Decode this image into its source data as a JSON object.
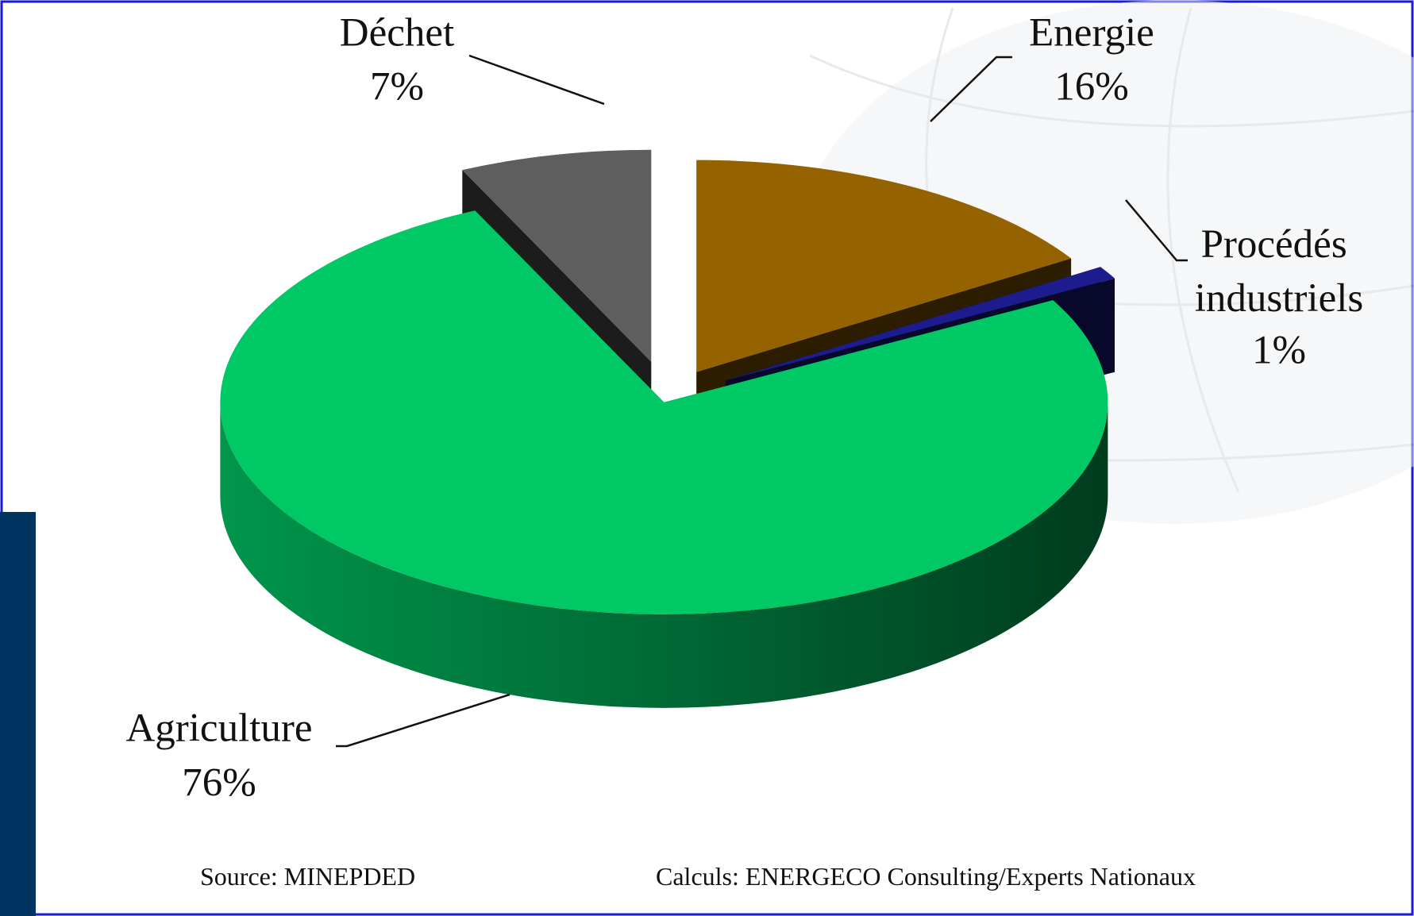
{
  "chart_data": {
    "type": "pie",
    "categories": [
      "Energie",
      "Procédés industriels",
      "Agriculture",
      "Déchet"
    ],
    "values": [
      16,
      1,
      76,
      7
    ],
    "value_labels": [
      "16%",
      "1%",
      "76%",
      "7%"
    ],
    "colors": [
      "#956200",
      "#1c1c8e",
      "#00c864",
      "#5e5e5e"
    ],
    "source": "Source: MINEPDED",
    "credit": "Calculs: ENERGECO Consulting/Experts Nationaux"
  }
}
